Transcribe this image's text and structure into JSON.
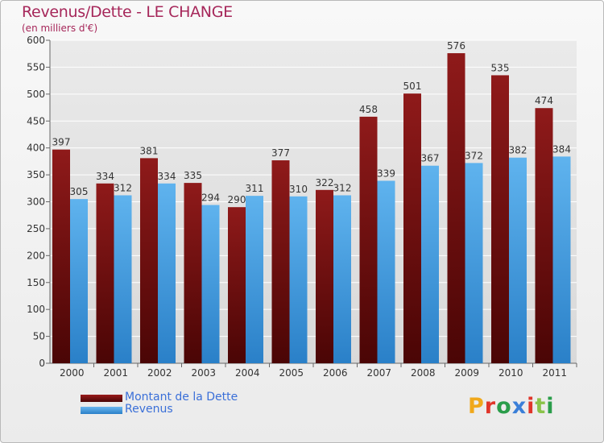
{
  "chart_data": {
    "type": "bar",
    "title": "Revenus/Dette - LE CHANGE",
    "subtitle": "(en milliers d'€)",
    "categories": [
      "2000",
      "2001",
      "2002",
      "2003",
      "2004",
      "2005",
      "2006",
      "2007",
      "2008",
      "2009",
      "2010",
      "2011"
    ],
    "series": [
      {
        "name": "Montant de la Dette",
        "color": "#7a0f0f",
        "values": [
          397,
          334,
          381,
          335,
          290,
          377,
          322,
          458,
          501,
          576,
          535,
          474
        ]
      },
      {
        "name": "Revenus",
        "color": "#4da3e8",
        "values": [
          305,
          312,
          334,
          294,
          311,
          310,
          312,
          339,
          367,
          372,
          382,
          384
        ]
      }
    ],
    "ylim": [
      0,
      600
    ],
    "yticks": [
      0,
      50,
      100,
      150,
      200,
      250,
      300,
      350,
      400,
      450,
      500,
      550,
      600
    ],
    "grid": true,
    "legend_position": "bottom-left"
  },
  "logo": {
    "letters": [
      "P",
      "r",
      "o",
      "x",
      "i",
      "t",
      "i"
    ],
    "text": "Proxiti"
  }
}
